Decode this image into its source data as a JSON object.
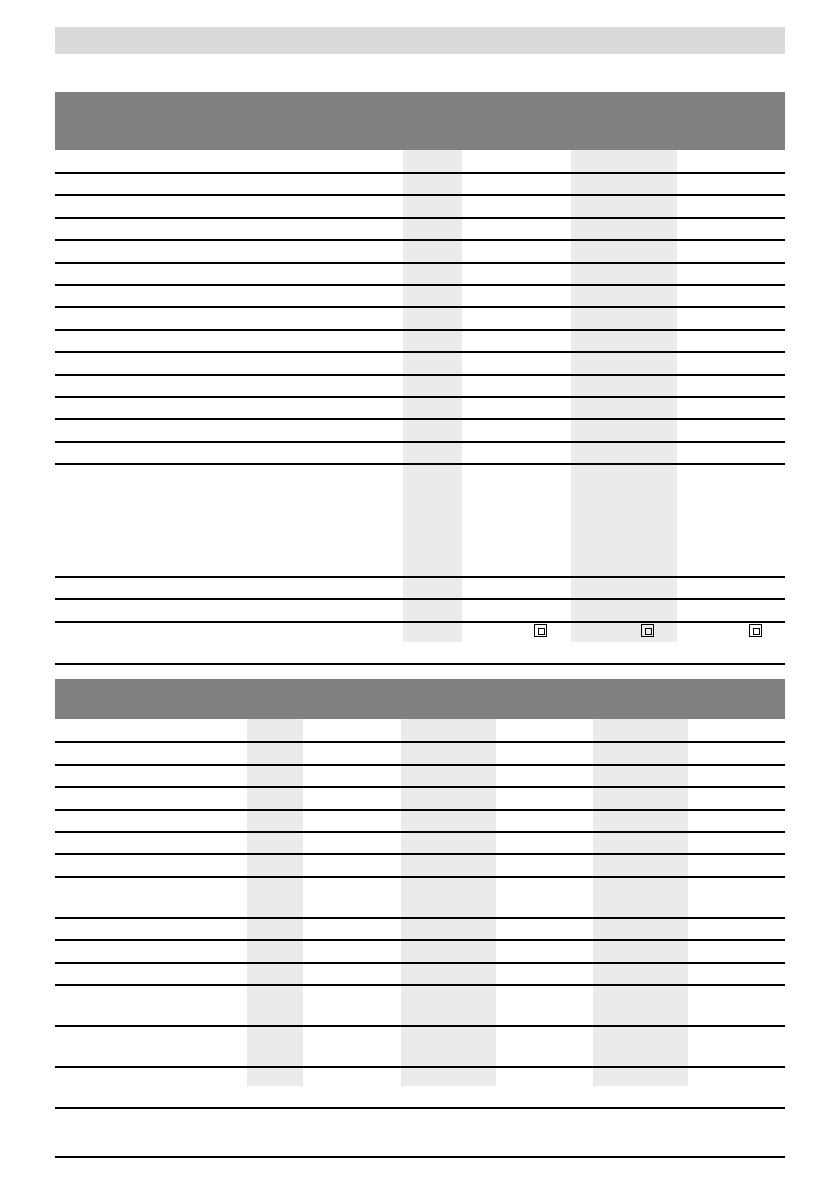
{
  "document": {
    "table_1": {
      "footer_icons": [
        "double-insulation-icon",
        "double-insulation-icon",
        "double-insulation-icon"
      ]
    },
    "table_2": {}
  }
}
